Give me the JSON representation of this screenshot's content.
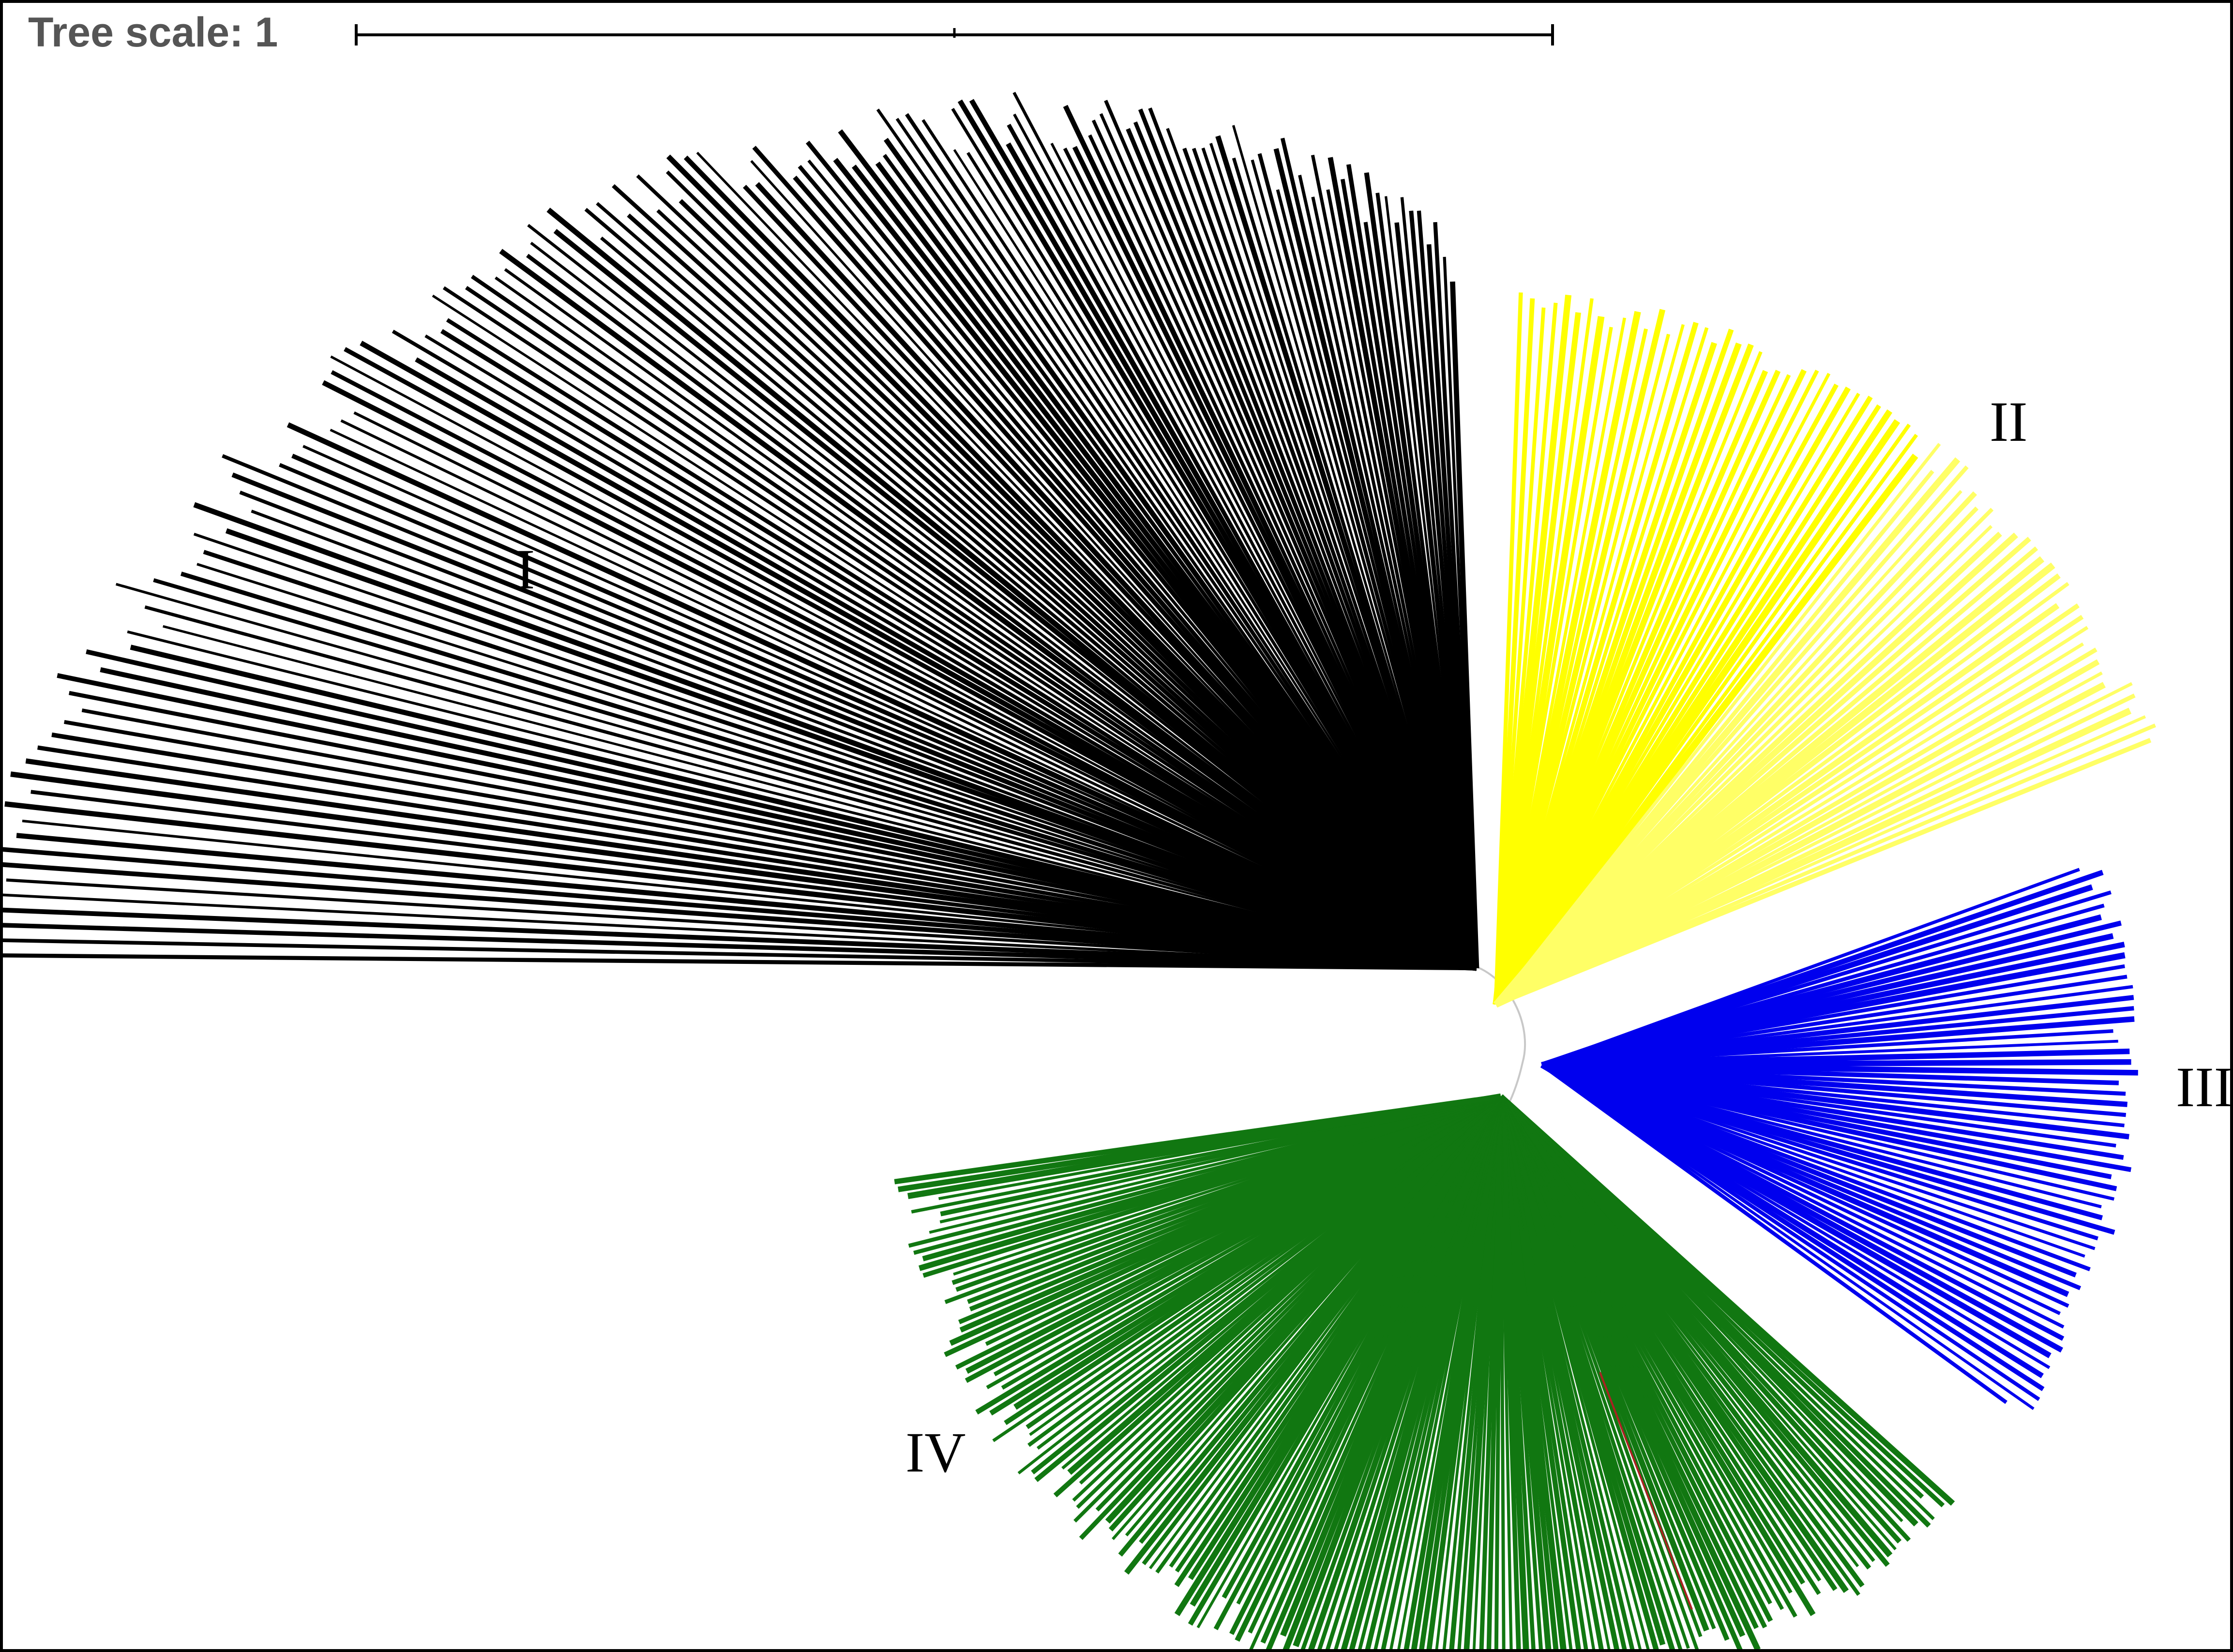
{
  "scale_bar": {
    "label": "Tree scale: 1"
  },
  "clades": [
    {
      "id": "I",
      "label": "I",
      "color": "#000000"
    },
    {
      "id": "II",
      "label": "II",
      "color": "#ffff00",
      "secondary_color": "#ffff66"
    },
    {
      "id": "III",
      "label": "III",
      "color": "#0000ee"
    },
    {
      "id": "IV",
      "label": "IV",
      "color": "#117711",
      "highlight_color": "#aa2222"
    }
  ]
}
